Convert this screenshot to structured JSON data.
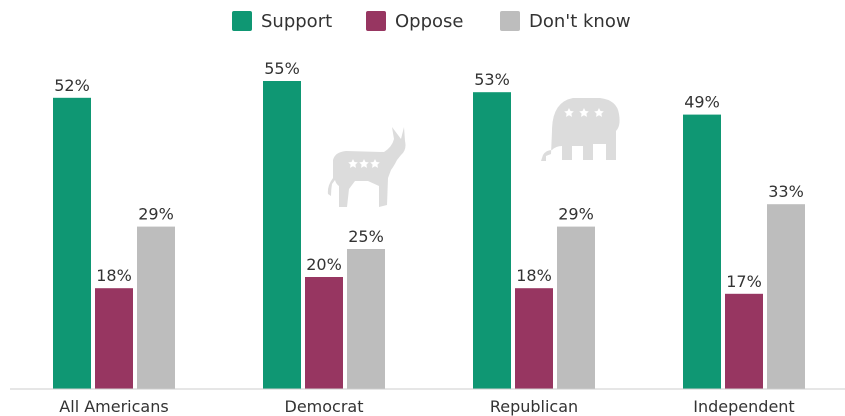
{
  "chart_data": {
    "type": "bar",
    "categories": [
      "All Americans",
      "Democrat",
      "Republican",
      "Independent"
    ],
    "series": [
      {
        "name": "Support",
        "color": "#0f9773",
        "values": [
          52,
          55,
          53,
          49
        ]
      },
      {
        "name": "Oppose",
        "color": "#973661",
        "values": [
          18,
          20,
          18,
          17
        ]
      },
      {
        "name": "Don't know",
        "color": "#bdbdbd",
        "values": [
          29,
          25,
          29,
          33
        ]
      }
    ],
    "value_suffix": "%",
    "ylim": [
      0,
      60
    ],
    "grid": false,
    "legend_position": "top-center",
    "title": "",
    "xlabel": "",
    "ylabel": ""
  },
  "decor": {
    "donkey_icon": "democrat-donkey-icon",
    "elephant_icon": "republican-elephant-icon",
    "icon_color": "#dcdcdc"
  },
  "colors": {
    "axis": "#cccccc",
    "text": "#333333"
  }
}
